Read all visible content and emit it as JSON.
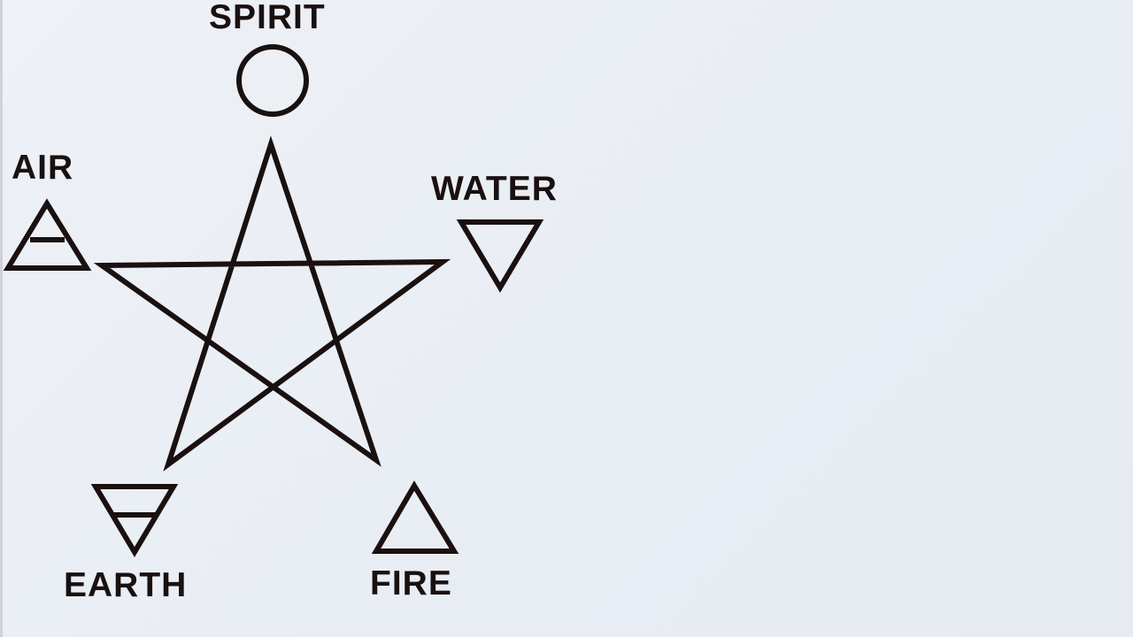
{
  "colors": {
    "background": "#e9eef5",
    "ink": "#1a1010"
  },
  "elements": {
    "spirit": {
      "label": "SPIRIT",
      "symbol": "circle-icon"
    },
    "air": {
      "label": "AIR",
      "symbol": "air-triangle-icon"
    },
    "water": {
      "label": "WATER",
      "symbol": "water-triangle-icon"
    },
    "earth": {
      "label": "EARTH",
      "symbol": "earth-triangle-icon"
    },
    "fire": {
      "label": "FIRE",
      "symbol": "fire-triangle-icon"
    }
  }
}
